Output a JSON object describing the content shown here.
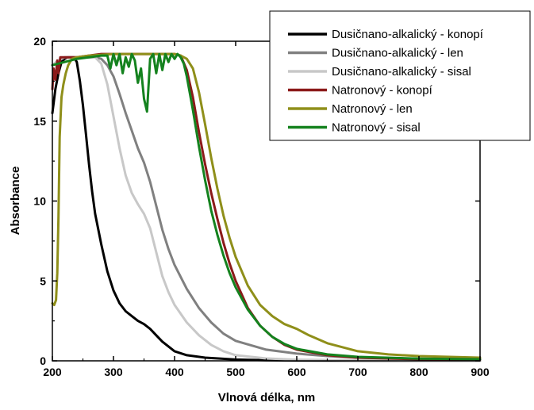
{
  "chart_data": {
    "type": "line",
    "xlabel": "Vlnová délka, nm",
    "ylabel": "Absorbance",
    "xlim": [
      200,
      900
    ],
    "ylim": [
      0,
      20
    ],
    "xticks": [
      200,
      300,
      400,
      500,
      600,
      700,
      800,
      900
    ],
    "yticks": [
      0,
      5,
      10,
      15,
      20
    ],
    "grid": false,
    "legend_position": "top-right",
    "series": [
      {
        "name": "Dusičnano-alkalický - konopí",
        "color": "#000000",
        "x": [
          200,
          205,
          210,
          215,
          220,
          225,
          230,
          235,
          240,
          245,
          250,
          255,
          260,
          265,
          270,
          280,
          290,
          300,
          310,
          320,
          330,
          340,
          350,
          360,
          370,
          380,
          400,
          420,
          450,
          500,
          550,
          600,
          700,
          800,
          900
        ],
        "y": [
          15.5,
          17.0,
          18.0,
          18.7,
          18.9,
          19.0,
          19.0,
          19.0,
          18.7,
          17.5,
          16.0,
          14.2,
          12.3,
          10.6,
          9.2,
          7.3,
          5.6,
          4.4,
          3.6,
          3.1,
          2.8,
          2.5,
          2.3,
          2.0,
          1.6,
          1.2,
          0.6,
          0.35,
          0.2,
          0.08,
          0.04,
          0.02,
          0.01,
          0.01,
          0.01
        ]
      },
      {
        "name": "Dusičnano-alkalický - len",
        "color": "#808080",
        "x": [
          200,
          210,
          220,
          230,
          240,
          250,
          260,
          270,
          280,
          290,
          300,
          310,
          320,
          330,
          340,
          350,
          360,
          370,
          380,
          390,
          400,
          420,
          440,
          460,
          480,
          500,
          550,
          600,
          650,
          700,
          800,
          900
        ],
        "y": [
          18.5,
          18.8,
          19.0,
          19.0,
          19.0,
          19.0,
          19.0,
          19.0,
          18.9,
          18.5,
          17.8,
          16.7,
          15.5,
          14.4,
          13.3,
          12.4,
          11.2,
          9.7,
          8.2,
          7.0,
          6.0,
          4.5,
          3.3,
          2.4,
          1.7,
          1.25,
          0.7,
          0.45,
          0.3,
          0.2,
          0.12,
          0.08
        ]
      },
      {
        "name": "Dusičnano-alkalický - sisal",
        "color": "#c8c8c8",
        "x": [
          200,
          210,
          220,
          230,
          240,
          250,
          260,
          270,
          280,
          290,
          300,
          310,
          320,
          330,
          340,
          350,
          360,
          370,
          380,
          390,
          400,
          420,
          440,
          460,
          480,
          500,
          550,
          600,
          700,
          800,
          900
        ],
        "y": [
          18.5,
          18.8,
          19.0,
          19.0,
          19.0,
          19.0,
          19.0,
          19.0,
          18.6,
          17.3,
          15.3,
          13.3,
          11.6,
          10.5,
          9.8,
          9.2,
          8.3,
          6.8,
          5.3,
          4.3,
          3.5,
          2.4,
          1.6,
          1.0,
          0.6,
          0.35,
          0.15,
          0.07,
          0.03,
          0.02,
          0.01
        ]
      },
      {
        "name": "Natronový - konopí",
        "color": "#8b1a1a",
        "x": [
          200,
          202,
          205,
          208,
          210,
          213,
          220,
          240,
          260,
          280,
          300,
          320,
          340,
          360,
          380,
          400,
          410,
          420,
          430,
          440,
          450,
          460,
          470,
          480,
          490,
          500,
          520,
          540,
          560,
          580,
          600,
          650,
          700,
          800,
          900
        ],
        "y": [
          17.0,
          18.3,
          17.6,
          18.8,
          18.0,
          19.0,
          19.0,
          19.0,
          19.1,
          19.2,
          19.2,
          19.2,
          19.2,
          19.2,
          19.2,
          19.2,
          19.1,
          18.2,
          16.5,
          14.3,
          12.3,
          10.5,
          8.9,
          7.4,
          6.1,
          5.0,
          3.3,
          2.2,
          1.5,
          1.0,
          0.7,
          0.35,
          0.2,
          0.1,
          0.08
        ]
      },
      {
        "name": "Natronový - len",
        "color": "#8f8f1a",
        "x": [
          200,
          203,
          206,
          208,
          210,
          212,
          215,
          218,
          222,
          226,
          232,
          240,
          260,
          300,
          350,
          400,
          410,
          420,
          430,
          440,
          450,
          460,
          470,
          480,
          490,
          500,
          520,
          540,
          560,
          580,
          600,
          620,
          650,
          700,
          750,
          800,
          900
        ],
        "y": [
          3.6,
          3.5,
          3.8,
          5.5,
          9.0,
          14.0,
          16.5,
          17.3,
          18.0,
          18.5,
          18.9,
          19.0,
          19.1,
          19.2,
          19.2,
          19.2,
          19.1,
          18.9,
          18.3,
          16.8,
          14.8,
          12.7,
          10.8,
          9.1,
          7.7,
          6.5,
          4.7,
          3.5,
          2.8,
          2.3,
          2.0,
          1.6,
          1.1,
          0.6,
          0.4,
          0.3,
          0.2
        ]
      },
      {
        "name": "Natronový - sisal",
        "color": "#14821e",
        "x": [
          200,
          220,
          240,
          260,
          280,
          290,
          295,
          300,
          305,
          310,
          315,
          320,
          325,
          330,
          335,
          340,
          345,
          350,
          355,
          360,
          365,
          370,
          375,
          380,
          385,
          390,
          395,
          400,
          405,
          410,
          415,
          420,
          430,
          440,
          450,
          460,
          470,
          480,
          490,
          500,
          520,
          540,
          560,
          580,
          600,
          650,
          700,
          800,
          900
        ],
        "y": [
          18.5,
          18.7,
          18.9,
          19.0,
          19.1,
          19.1,
          18.3,
          19.2,
          18.5,
          19.2,
          18.0,
          19.0,
          18.4,
          19.2,
          18.8,
          17.4,
          18.3,
          16.4,
          15.6,
          18.9,
          19.2,
          18.0,
          19.2,
          18.2,
          19.2,
          18.7,
          19.2,
          18.9,
          19.2,
          19.0,
          18.6,
          17.8,
          15.7,
          13.4,
          11.3,
          9.4,
          7.9,
          6.6,
          5.5,
          4.6,
          3.2,
          2.2,
          1.5,
          1.05,
          0.75,
          0.4,
          0.25,
          0.14,
          0.1
        ]
      }
    ]
  }
}
